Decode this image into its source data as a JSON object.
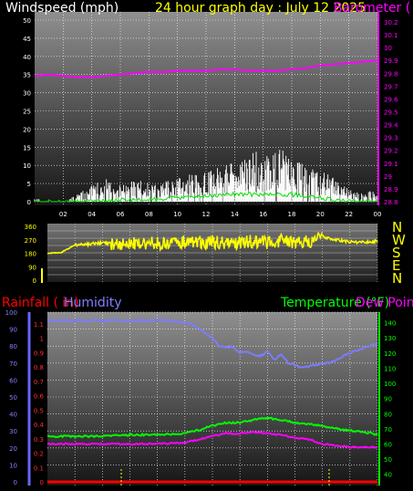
{
  "header": {
    "title_left": "Windspeed (mph)",
    "title_mid": "24 hour graph day : July 12 2025",
    "title_right": "Barometer ("
  },
  "panel3": {
    "label_rainfall": "Rainfall ( in)",
    "label_humidity": "Humidity",
    "label_temperature": "Temperature (°F)",
    "label_dewpoint": "Dew Point"
  },
  "colors": {
    "wind": "#ffffff",
    "wind_avg": "#00e000",
    "barometer": "#ff00ff",
    "direction": "#ffff00",
    "humidity": "#8080ff",
    "temperature": "#00ff00",
    "dewpoint": "#ff00ff",
    "rain": "#ff0000",
    "rain_axis": "#6666ff",
    "temp_axis": "#00ff00",
    "bg_top": "#8f8f8f",
    "bg_bottom": "#181818"
  },
  "chart_data": [
    {
      "name": "wind_barometer",
      "type": "line",
      "title": "24 hour graph day : July 12 2025",
      "x_ticks": [
        "02",
        "04",
        "06",
        "08",
        "10",
        "12",
        "14",
        "16",
        "18",
        "20",
        "22",
        "00"
      ],
      "ylabel_left": "Windspeed (mph)",
      "ylim_left": [
        0,
        50
      ],
      "y_ticks_left": [
        "0",
        "5",
        "10",
        "15",
        "20",
        "25",
        "30",
        "35",
        "40",
        "45",
        "50"
      ],
      "ylabel_right": "Barometer (",
      "ylim_right": [
        28.8,
        30.25
      ],
      "y_ticks_right": [
        "28.8",
        "28.9",
        "29",
        "29.1",
        "29.2",
        "29.3",
        "29.4",
        "29.5",
        "29.6",
        "29.7",
        "29.8",
        "29.9",
        "30",
        "30.1",
        "30.2"
      ],
      "series": [
        {
          "key": "barometer",
          "hours": [
            0,
            1,
            2,
            3,
            4,
            5,
            6,
            7,
            8,
            9,
            10,
            11,
            12,
            13,
            14,
            15,
            16,
            17,
            18,
            19,
            20,
            21,
            22,
            23,
            24
          ],
          "values": [
            29.78,
            29.79,
            29.78,
            29.77,
            29.77,
            29.78,
            29.79,
            29.8,
            29.81,
            29.81,
            29.82,
            29.82,
            29.82,
            29.83,
            29.83,
            29.82,
            29.82,
            29.82,
            29.83,
            29.84,
            29.86,
            29.87,
            29.88,
            29.89,
            29.9
          ]
        },
        {
          "key": "wind_peak_envelope",
          "hours": [
            0,
            1,
            2,
            3,
            4,
            5,
            6,
            7,
            8,
            9,
            10,
            11,
            12,
            13,
            14,
            15,
            16,
            17,
            18,
            19,
            20,
            21,
            22,
            23,
            24
          ],
          "values": [
            1,
            0,
            0,
            2,
            4,
            6,
            4,
            6,
            5,
            5,
            6,
            7,
            8,
            9,
            10,
            12,
            13,
            14,
            11,
            9,
            8,
            6,
            3,
            2,
            4
          ]
        },
        {
          "key": "wind_average",
          "hours": [
            0,
            2,
            4,
            6,
            8,
            10,
            12,
            14,
            16,
            18,
            20,
            22,
            24
          ],
          "values": [
            0,
            0,
            0,
            0.5,
            0.5,
            1,
            1.5,
            2,
            2,
            2,
            1,
            0,
            0
          ]
        }
      ]
    },
    {
      "name": "wind_direction",
      "type": "line",
      "y_ticks": [
        "360",
        "270",
        "180",
        "90",
        "0"
      ],
      "ylim": [
        0,
        360
      ],
      "compass": [
        "N",
        "W",
        "S",
        "E",
        "N"
      ],
      "series": [
        {
          "key": "direction",
          "hours": [
            0,
            1,
            2,
            3,
            4,
            5,
            6,
            7,
            8,
            9,
            10,
            11,
            12,
            13,
            14,
            15,
            16,
            17,
            18,
            19,
            20,
            21,
            22,
            23,
            24
          ],
          "values": [
            180,
            185,
            235,
            240,
            250,
            245,
            240,
            250,
            245,
            250,
            255,
            250,
            255,
            245,
            250,
            260,
            255,
            265,
            255,
            260,
            290,
            270,
            255,
            255,
            260
          ]
        }
      ]
    },
    {
      "name": "rain_humidity_temp",
      "type": "line",
      "y_ticks_humidity": [
        "0",
        "10",
        "20",
        "30",
        "40",
        "50",
        "60",
        "70",
        "80",
        "90",
        "100"
      ],
      "y_ticks_rain": [
        "0",
        "0.1",
        "0.2",
        "0.3",
        "0.4",
        "0.5",
        "0.6",
        "0.7",
        "0.8",
        "0.9",
        "1",
        "1.1"
      ],
      "y_ticks_temp": [
        "40",
        "50",
        "60",
        "70",
        "80",
        "90",
        "100",
        "110",
        "120",
        "130",
        "140"
      ],
      "ylim_humidity": [
        0,
        100
      ],
      "ylim_temp": [
        35,
        147
      ],
      "series": [
        {
          "key": "humidity",
          "hours": [
            0,
            2,
            4,
            6,
            8,
            9,
            10,
            11,
            12,
            12.5,
            13,
            13.5,
            14,
            14.5,
            15,
            15.5,
            16,
            16.5,
            17,
            17.5,
            18,
            18.5,
            19,
            19.5,
            20,
            20.5,
            21,
            22,
            23,
            24
          ],
          "values": [
            95,
            95,
            95,
            95,
            95,
            95,
            94,
            91,
            84,
            80,
            79,
            80,
            76,
            77,
            75,
            74,
            77,
            72,
            75,
            70,
            69,
            67,
            68,
            69,
            70,
            70,
            72,
            76,
            79,
            82
          ]
        },
        {
          "key": "temperature",
          "hours": [
            0,
            2,
            4,
            6,
            8,
            10,
            11,
            12,
            13,
            14,
            15,
            16,
            17,
            18,
            19,
            20,
            21,
            22,
            23,
            24
          ],
          "values": [
            65,
            65,
            65,
            66,
            66,
            67,
            69,
            72,
            74,
            74,
            76,
            77,
            76,
            74,
            73,
            72,
            70,
            69,
            68,
            66
          ]
        },
        {
          "key": "dewpoint",
          "hours": [
            0,
            2,
            4,
            6,
            8,
            10,
            11,
            12,
            13,
            14,
            15,
            16,
            17,
            18,
            19,
            20,
            21,
            22,
            23,
            24
          ],
          "values": [
            60,
            60,
            60,
            60,
            60,
            61,
            63,
            65,
            67,
            67,
            68,
            67,
            66,
            64,
            63,
            60,
            59,
            58,
            58,
            58
          ]
        },
        {
          "key": "rainfall",
          "hours": [
            0,
            24
          ],
          "values": [
            0,
            0
          ]
        }
      ]
    }
  ]
}
